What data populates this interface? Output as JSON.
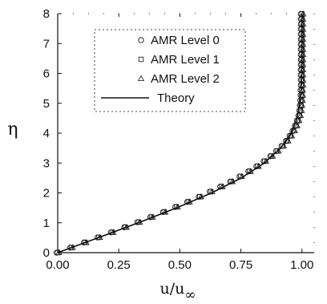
{
  "chart_data": {
    "type": "line",
    "xlabel": "u/u",
    "xlabel_sub": "∞",
    "ylabel": "η",
    "xlim": [
      0,
      1.05
    ],
    "ylim": [
      0,
      8
    ],
    "x_ticks": [
      "0.00",
      "0.25",
      "0.50",
      "0.75",
      "1.00"
    ],
    "y_ticks": [
      "0",
      "1",
      "2",
      "3",
      "4",
      "5",
      "6",
      "7",
      "8"
    ],
    "grid": false,
    "legend_position": "top-center",
    "series": [
      {
        "name": "AMR Level 0",
        "marker": "circle",
        "points": [
          [
            0.0,
            0.0
          ],
          [
            0.056,
            0.17
          ],
          [
            0.112,
            0.34
          ],
          [
            0.168,
            0.51
          ],
          [
            0.223,
            0.68
          ],
          [
            0.277,
            0.85
          ],
          [
            0.331,
            1.02
          ],
          [
            0.384,
            1.19
          ],
          [
            0.436,
            1.36
          ],
          [
            0.486,
            1.53
          ],
          [
            0.535,
            1.7
          ],
          [
            0.582,
            1.87
          ],
          [
            0.627,
            2.04
          ],
          [
            0.67,
            2.21
          ],
          [
            0.711,
            2.38
          ],
          [
            0.749,
            2.55
          ],
          [
            0.785,
            2.72
          ],
          [
            0.818,
            2.89
          ],
          [
            0.848,
            3.06
          ],
          [
            0.875,
            3.23
          ],
          [
            0.899,
            3.4
          ],
          [
            0.921,
            3.57
          ],
          [
            0.939,
            3.74
          ],
          [
            0.954,
            3.91
          ],
          [
            0.966,
            4.08
          ],
          [
            0.976,
            4.25
          ],
          [
            0.984,
            4.42
          ],
          [
            0.99,
            4.59
          ],
          [
            0.994,
            4.76
          ],
          [
            0.996,
            4.93
          ],
          [
            0.998,
            5.1
          ],
          [
            0.999,
            5.27
          ],
          [
            0.999,
            5.44
          ],
          [
            1.0,
            5.61
          ],
          [
            1.0,
            5.78
          ],
          [
            1.0,
            5.95
          ],
          [
            1.0,
            6.12
          ],
          [
            1.0,
            6.29
          ],
          [
            1.0,
            6.46
          ],
          [
            1.0,
            6.63
          ],
          [
            1.0,
            6.8
          ],
          [
            1.0,
            6.97
          ],
          [
            1.0,
            7.14
          ],
          [
            1.0,
            7.31
          ],
          [
            1.0,
            7.48
          ],
          [
            1.0,
            7.65
          ],
          [
            1.0,
            7.82
          ],
          [
            1.0,
            7.99
          ]
        ]
      },
      {
        "name": "AMR Level 1",
        "marker": "square",
        "points": [
          [
            0.0,
            0.0
          ],
          [
            0.056,
            0.17
          ],
          [
            0.112,
            0.34
          ],
          [
            0.168,
            0.51
          ],
          [
            0.223,
            0.68
          ],
          [
            0.277,
            0.85
          ],
          [
            0.331,
            1.02
          ],
          [
            0.384,
            1.19
          ],
          [
            0.436,
            1.36
          ],
          [
            0.486,
            1.53
          ],
          [
            0.535,
            1.7
          ],
          [
            0.582,
            1.87
          ],
          [
            0.627,
            2.04
          ],
          [
            0.67,
            2.21
          ],
          [
            0.711,
            2.38
          ],
          [
            0.749,
            2.55
          ],
          [
            0.785,
            2.72
          ],
          [
            0.818,
            2.89
          ],
          [
            0.848,
            3.06
          ],
          [
            0.875,
            3.23
          ],
          [
            0.899,
            3.4
          ],
          [
            0.921,
            3.57
          ],
          [
            0.939,
            3.74
          ],
          [
            0.954,
            3.91
          ],
          [
            0.966,
            4.08
          ],
          [
            0.976,
            4.25
          ],
          [
            0.984,
            4.42
          ],
          [
            0.99,
            4.59
          ],
          [
            0.994,
            4.76
          ],
          [
            0.996,
            4.93
          ],
          [
            0.998,
            5.1
          ],
          [
            0.999,
            5.27
          ],
          [
            0.999,
            5.44
          ],
          [
            1.0,
            5.61
          ],
          [
            1.0,
            5.78
          ],
          [
            1.0,
            5.95
          ],
          [
            1.0,
            6.12
          ],
          [
            1.0,
            6.29
          ],
          [
            1.0,
            6.46
          ],
          [
            1.0,
            6.63
          ],
          [
            1.0,
            6.8
          ],
          [
            1.0,
            6.97
          ],
          [
            1.0,
            7.14
          ],
          [
            1.0,
            7.31
          ],
          [
            1.0,
            7.48
          ],
          [
            1.0,
            7.65
          ],
          [
            1.0,
            7.82
          ],
          [
            1.0,
            7.99
          ]
        ]
      },
      {
        "name": "AMR Level 2",
        "marker": "triangle",
        "points": [
          [
            0.0,
            0.0
          ],
          [
            0.056,
            0.17
          ],
          [
            0.112,
            0.34
          ],
          [
            0.168,
            0.51
          ],
          [
            0.223,
            0.68
          ],
          [
            0.277,
            0.85
          ],
          [
            0.331,
            1.02
          ],
          [
            0.384,
            1.19
          ],
          [
            0.436,
            1.36
          ],
          [
            0.486,
            1.53
          ],
          [
            0.535,
            1.7
          ],
          [
            0.582,
            1.87
          ],
          [
            0.627,
            2.04
          ],
          [
            0.67,
            2.21
          ],
          [
            0.711,
            2.38
          ],
          [
            0.749,
            2.55
          ],
          [
            0.785,
            2.72
          ],
          [
            0.818,
            2.89
          ],
          [
            0.848,
            3.06
          ],
          [
            0.875,
            3.23
          ],
          [
            0.899,
            3.4
          ],
          [
            0.921,
            3.57
          ],
          [
            0.939,
            3.74
          ],
          [
            0.954,
            3.91
          ],
          [
            0.966,
            4.08
          ],
          [
            0.976,
            4.25
          ],
          [
            0.984,
            4.42
          ],
          [
            0.99,
            4.59
          ],
          [
            0.994,
            4.76
          ],
          [
            0.996,
            4.93
          ],
          [
            0.998,
            5.1
          ],
          [
            0.999,
            5.27
          ],
          [
            0.999,
            5.44
          ],
          [
            1.0,
            5.61
          ],
          [
            1.0,
            5.78
          ],
          [
            1.0,
            5.95
          ],
          [
            1.0,
            6.12
          ],
          [
            1.0,
            6.29
          ],
          [
            1.0,
            6.46
          ],
          [
            1.0,
            6.63
          ],
          [
            1.0,
            6.8
          ],
          [
            1.0,
            6.97
          ],
          [
            1.0,
            7.14
          ],
          [
            1.0,
            7.31
          ],
          [
            1.0,
            7.48
          ],
          [
            1.0,
            7.65
          ],
          [
            1.0,
            7.82
          ],
          [
            1.0,
            7.99
          ]
        ]
      },
      {
        "name": "Theory",
        "marker": "line",
        "points": [
          [
            0.0,
            0.0
          ],
          [
            0.1659,
            0.5
          ],
          [
            0.3298,
            1.0
          ],
          [
            0.4868,
            1.5
          ],
          [
            0.6298,
            2.0
          ],
          [
            0.7513,
            2.5
          ],
          [
            0.846,
            3.0
          ],
          [
            0.913,
            3.5
          ],
          [
            0.9555,
            4.0
          ],
          [
            0.9795,
            4.5
          ],
          [
            0.9915,
            5.0
          ],
          [
            0.9969,
            5.5
          ],
          [
            0.999,
            6.0
          ],
          [
            0.9997,
            6.5
          ],
          [
            0.9999,
            7.0
          ],
          [
            1.0,
            7.5
          ],
          [
            1.0,
            8.0
          ]
        ]
      }
    ],
    "colors": {
      "ink": "#111111",
      "background": "#ffffff"
    }
  }
}
